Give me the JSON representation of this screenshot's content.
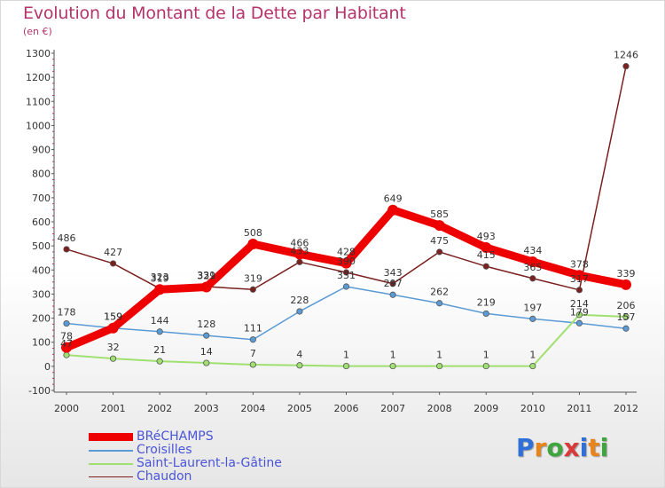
{
  "header": {
    "title": "Evolution du Montant de la Dette par Habitant",
    "subtitle": "(en €)"
  },
  "logo": {
    "letters": [
      "P",
      "r",
      "o",
      "x",
      "i",
      "t",
      "i"
    ],
    "colors": [
      "#2f6fd8",
      "#e8841c",
      "#3fa63f",
      "#d83a3a",
      "#2f6fd8",
      "#e8841c",
      "#3fa63f"
    ]
  },
  "chart_data": {
    "type": "line",
    "title": "Evolution du Montant de la Dette par Habitant",
    "xlabel": "",
    "ylabel": "(en €)",
    "x": [
      2000,
      2001,
      2002,
      2003,
      2004,
      2005,
      2006,
      2007,
      2008,
      2009,
      2010,
      2011,
      2012
    ],
    "ylim": [
      -100,
      1300
    ],
    "yticks": [
      -100,
      0,
      100,
      200,
      300,
      400,
      500,
      600,
      700,
      800,
      900,
      1000,
      1100,
      1200,
      1300
    ],
    "grid": false,
    "legend_position": "bottom-left",
    "series": [
      {
        "name": "BRéCHAMPS",
        "color": "#ee0000",
        "values": [
          78,
          159,
          319,
          329,
          508,
          466,
          428,
          649,
          585,
          493,
          434,
          378,
          339
        ],
        "labels": [
          "78",
          "159",
          "319",
          "329",
          "508",
          "466",
          "428",
          "649",
          "585",
          "493",
          "434",
          "378",
          "339"
        ]
      },
      {
        "name": "Croisilles",
        "color": "#5b9bd5",
        "values": [
          178,
          159,
          144,
          128,
          111,
          228,
          331,
          297,
          262,
          219,
          197,
          179,
          157
        ],
        "labels": [
          "178",
          "159",
          "144",
          "128",
          "111",
          "228",
          "331",
          "297",
          "262",
          "219",
          "197",
          "179",
          "157"
        ]
      },
      {
        "name": "Saint-Laurent-la-Gâtine",
        "color": "#a0e070",
        "values": [
          47,
          32,
          21,
          14,
          7,
          4,
          1,
          1,
          1,
          1,
          1,
          214,
          206
        ],
        "labels": [
          "47",
          "32",
          "21",
          "14",
          "7",
          "4",
          "1",
          "1",
          "1",
          "1",
          "1",
          "214",
          "206"
        ]
      },
      {
        "name": "Chaudon",
        "color": "#7b1f1f",
        "values": [
          486,
          427,
          323,
          331,
          319,
          433,
          390,
          343,
          475,
          415,
          365,
          317,
          1246
        ],
        "labels": [
          "486",
          "427",
          "323",
          "331",
          "319",
          "433",
          "390",
          "343",
          "475",
          "415",
          "365",
          "317",
          "1246"
        ]
      }
    ]
  }
}
